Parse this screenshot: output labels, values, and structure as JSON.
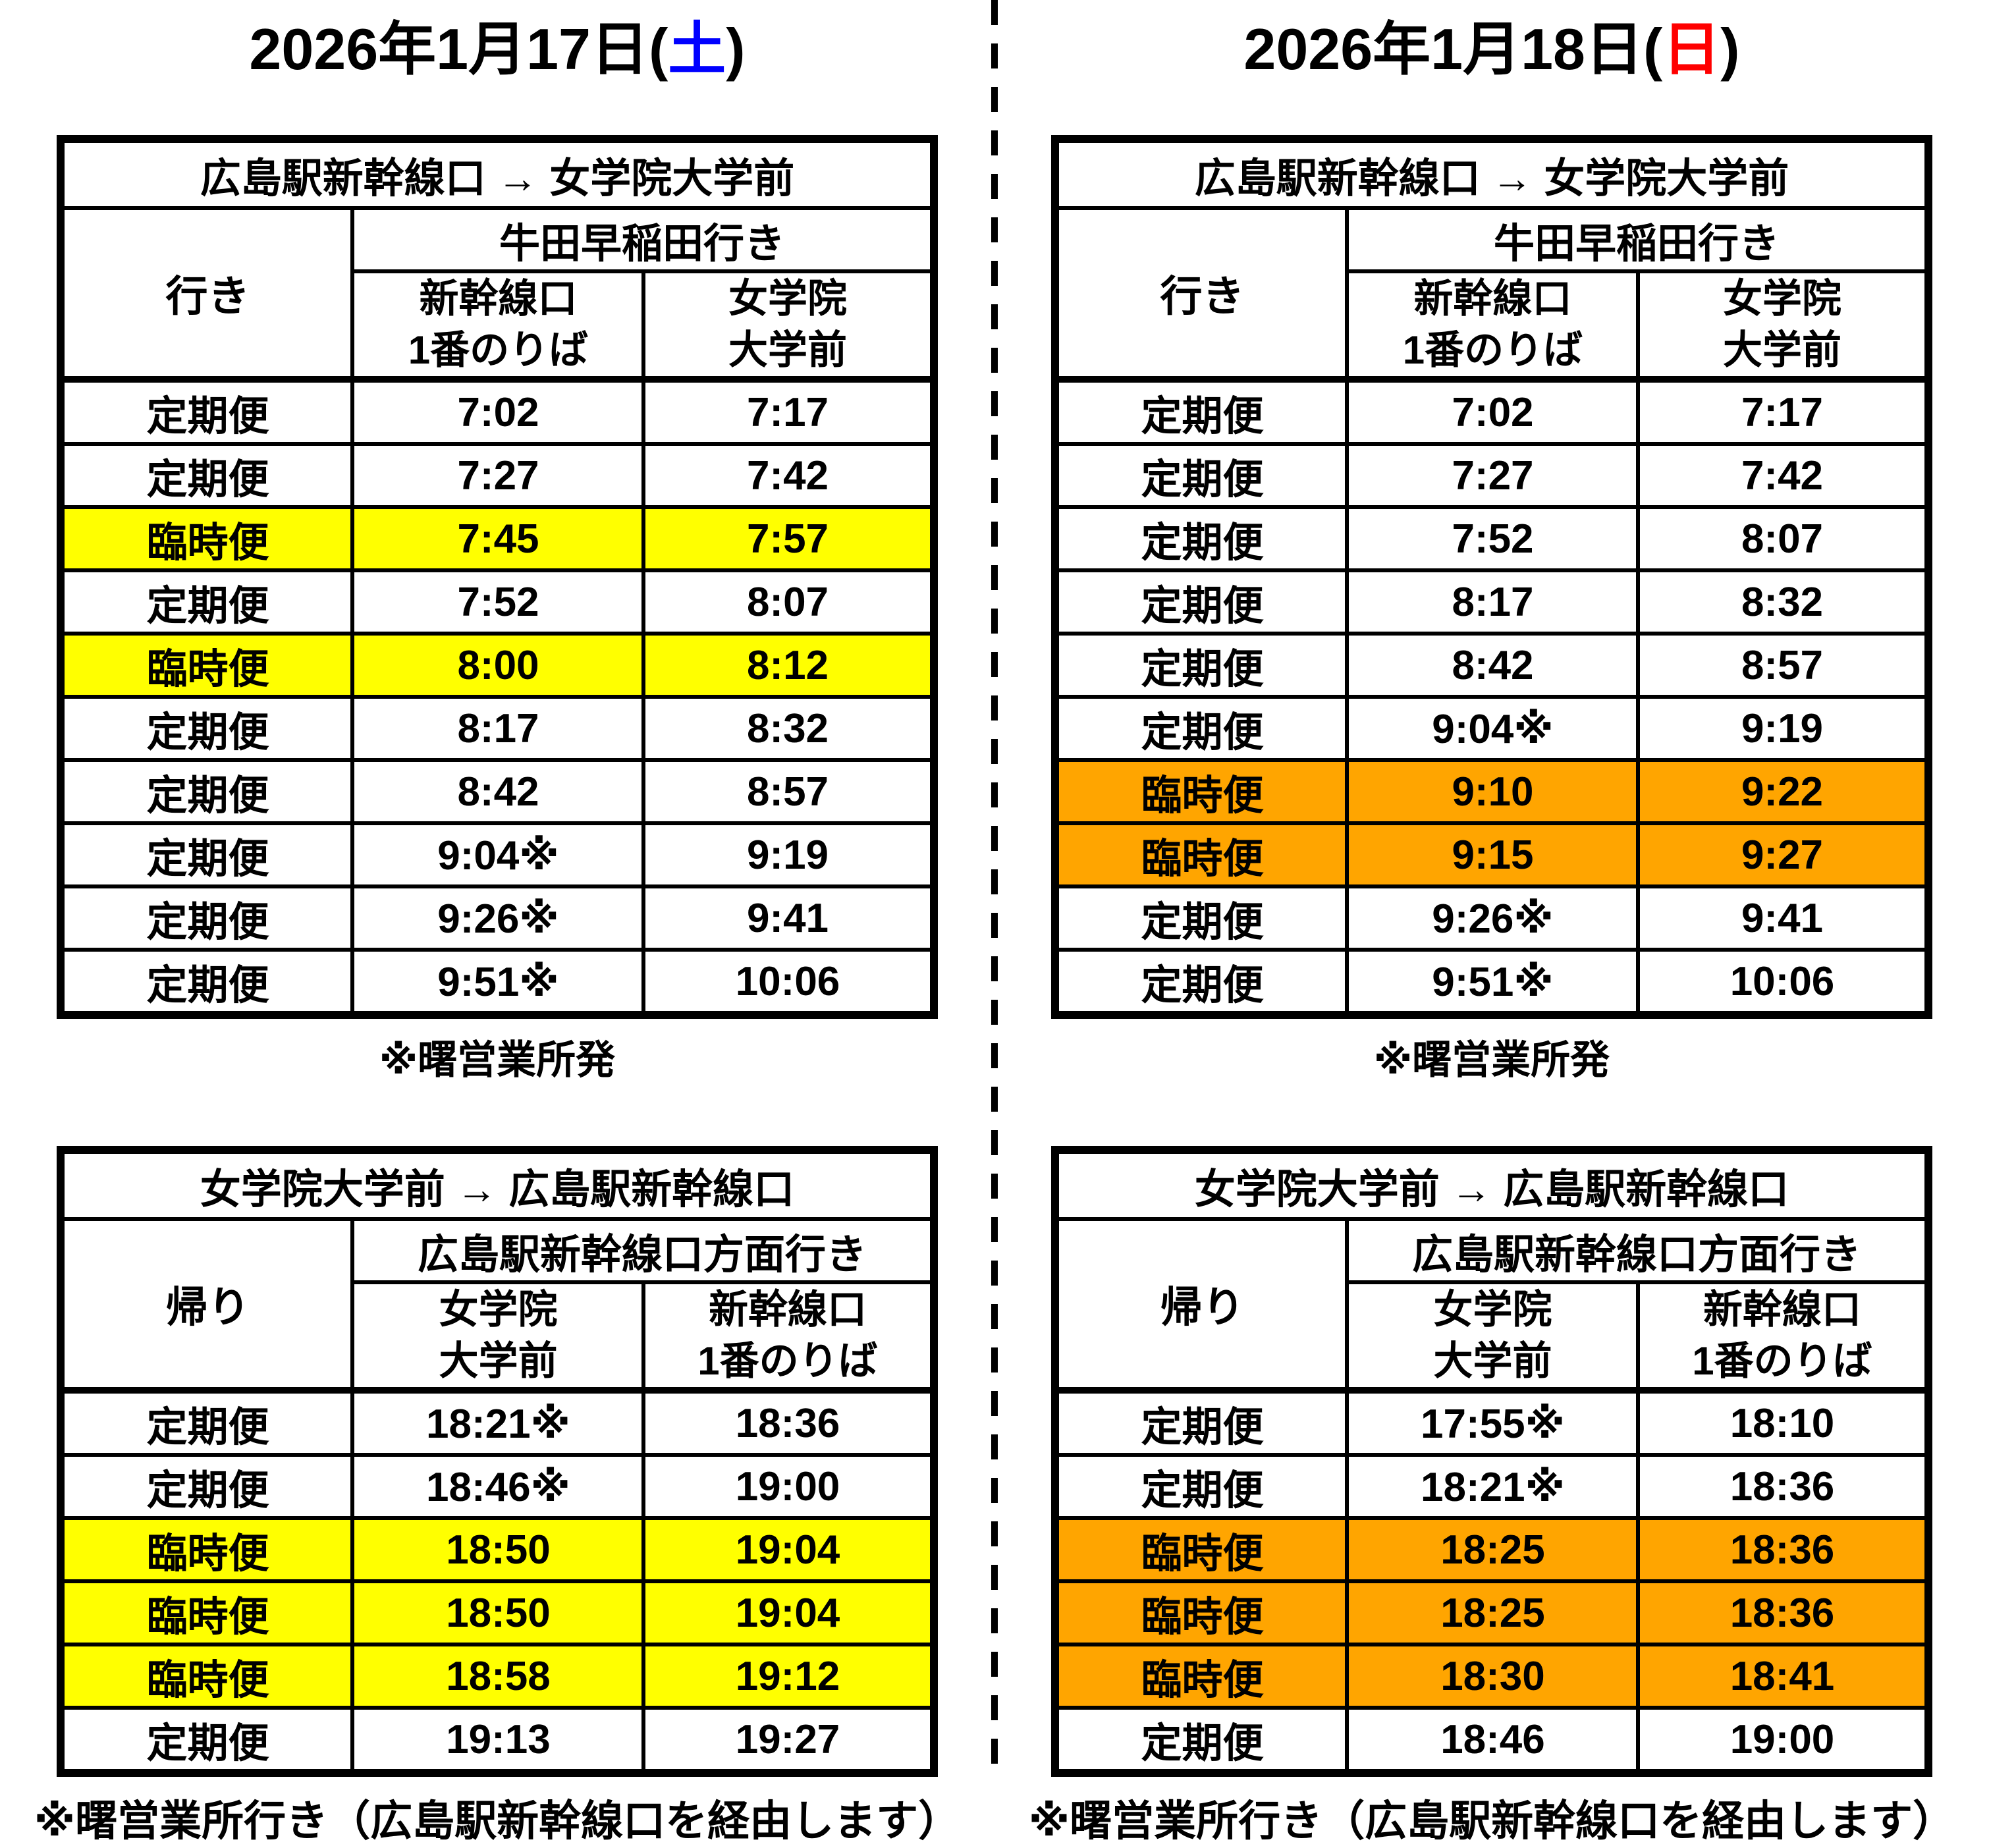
{
  "left": {
    "title": {
      "prefix": "2026年1月17日(",
      "day": "土",
      "suffix": ")",
      "day_color": "#0000ff"
    },
    "highlight_color": "#ffff00",
    "morning": {
      "route_header": "広島駅新幹線口 → 女学院大学前",
      "trip_label": "行き",
      "bound_header": "牛田早稲田行き",
      "stop1": [
        "新幹線口",
        "1番のりば"
      ],
      "stop2": [
        "女学院",
        "大学前"
      ],
      "rows": [
        {
          "service": "定期便",
          "t1": "7:02",
          "t2": "7:17",
          "highlight": false
        },
        {
          "service": "定期便",
          "t1": "7:27",
          "t2": "7:42",
          "highlight": false
        },
        {
          "service": "臨時便",
          "t1": "7:45",
          "t2": "7:57",
          "highlight": true
        },
        {
          "service": "定期便",
          "t1": "7:52",
          "t2": "8:07",
          "highlight": false
        },
        {
          "service": "臨時便",
          "t1": "8:00",
          "t2": "8:12",
          "highlight": true
        },
        {
          "service": "定期便",
          "t1": "8:17",
          "t2": "8:32",
          "highlight": false
        },
        {
          "service": "定期便",
          "t1": "8:42",
          "t2": "8:57",
          "highlight": false
        },
        {
          "service": "定期便",
          "t1": "9:04※",
          "t2": "9:19",
          "highlight": false
        },
        {
          "service": "定期便",
          "t1": "9:26※",
          "t2": "9:41",
          "highlight": false
        },
        {
          "service": "定期便",
          "t1": "9:51※",
          "t2": "10:06",
          "highlight": false
        }
      ],
      "note": "※曙営業所発"
    },
    "evening": {
      "route_header": "女学院大学前 → 広島駅新幹線口",
      "trip_label": "帰り",
      "bound_header": "広島駅新幹線口方面行き",
      "stop1": [
        "女学院",
        "大学前"
      ],
      "stop2": [
        "新幹線口",
        "1番のりば"
      ],
      "rows": [
        {
          "service": "定期便",
          "t1": "18:21※",
          "t2": "18:36",
          "highlight": false
        },
        {
          "service": "定期便",
          "t1": "18:46※",
          "t2": "19:00",
          "highlight": false
        },
        {
          "service": "臨時便",
          "t1": "18:50",
          "t2": "19:04",
          "highlight": true
        },
        {
          "service": "臨時便",
          "t1": "18:50",
          "t2": "19:04",
          "highlight": true
        },
        {
          "service": "臨時便",
          "t1": "18:58",
          "t2": "19:12",
          "highlight": true
        },
        {
          "service": "定期便",
          "t1": "19:13",
          "t2": "19:27",
          "highlight": false
        }
      ],
      "note": "※曙営業所行き（広島駅新幹線口を経由します）"
    }
  },
  "right": {
    "title": {
      "prefix": "2026年1月18日(",
      "day": "日",
      "suffix": ")",
      "day_color": "#ff0000"
    },
    "highlight_color": "#ffa500",
    "morning": {
      "route_header": "広島駅新幹線口 → 女学院大学前",
      "trip_label": "行き",
      "bound_header": "牛田早稲田行き",
      "stop1": [
        "新幹線口",
        "1番のりば"
      ],
      "stop2": [
        "女学院",
        "大学前"
      ],
      "rows": [
        {
          "service": "定期便",
          "t1": "7:02",
          "t2": "7:17",
          "highlight": false
        },
        {
          "service": "定期便",
          "t1": "7:27",
          "t2": "7:42",
          "highlight": false
        },
        {
          "service": "定期便",
          "t1": "7:52",
          "t2": "8:07",
          "highlight": false
        },
        {
          "service": "定期便",
          "t1": "8:17",
          "t2": "8:32",
          "highlight": false
        },
        {
          "service": "定期便",
          "t1": "8:42",
          "t2": "8:57",
          "highlight": false
        },
        {
          "service": "定期便",
          "t1": "9:04※",
          "t2": "9:19",
          "highlight": false
        },
        {
          "service": "臨時便",
          "t1": "9:10",
          "t2": "9:22",
          "highlight": true
        },
        {
          "service": "臨時便",
          "t1": "9:15",
          "t2": "9:27",
          "highlight": true
        },
        {
          "service": "定期便",
          "t1": "9:26※",
          "t2": "9:41",
          "highlight": false
        },
        {
          "service": "定期便",
          "t1": "9:51※",
          "t2": "10:06",
          "highlight": false
        }
      ],
      "note": "※曙営業所発"
    },
    "evening": {
      "route_header": "女学院大学前 → 広島駅新幹線口",
      "trip_label": "帰り",
      "bound_header": "広島駅新幹線口方面行き",
      "stop1": [
        "女学院",
        "大学前"
      ],
      "stop2": [
        "新幹線口",
        "1番のりば"
      ],
      "rows": [
        {
          "service": "定期便",
          "t1": "17:55※",
          "t2": "18:10",
          "highlight": false
        },
        {
          "service": "定期便",
          "t1": "18:21※",
          "t2": "18:36",
          "highlight": false
        },
        {
          "service": "臨時便",
          "t1": "18:25",
          "t2": "18:36",
          "highlight": true
        },
        {
          "service": "臨時便",
          "t1": "18:25",
          "t2": "18:36",
          "highlight": true
        },
        {
          "service": "臨時便",
          "t1": "18:30",
          "t2": "18:41",
          "highlight": true
        },
        {
          "service": "定期便",
          "t1": "18:46",
          "t2": "19:00",
          "highlight": false
        }
      ],
      "note": "※曙営業所行き（広島駅新幹線口を経由します）"
    }
  }
}
